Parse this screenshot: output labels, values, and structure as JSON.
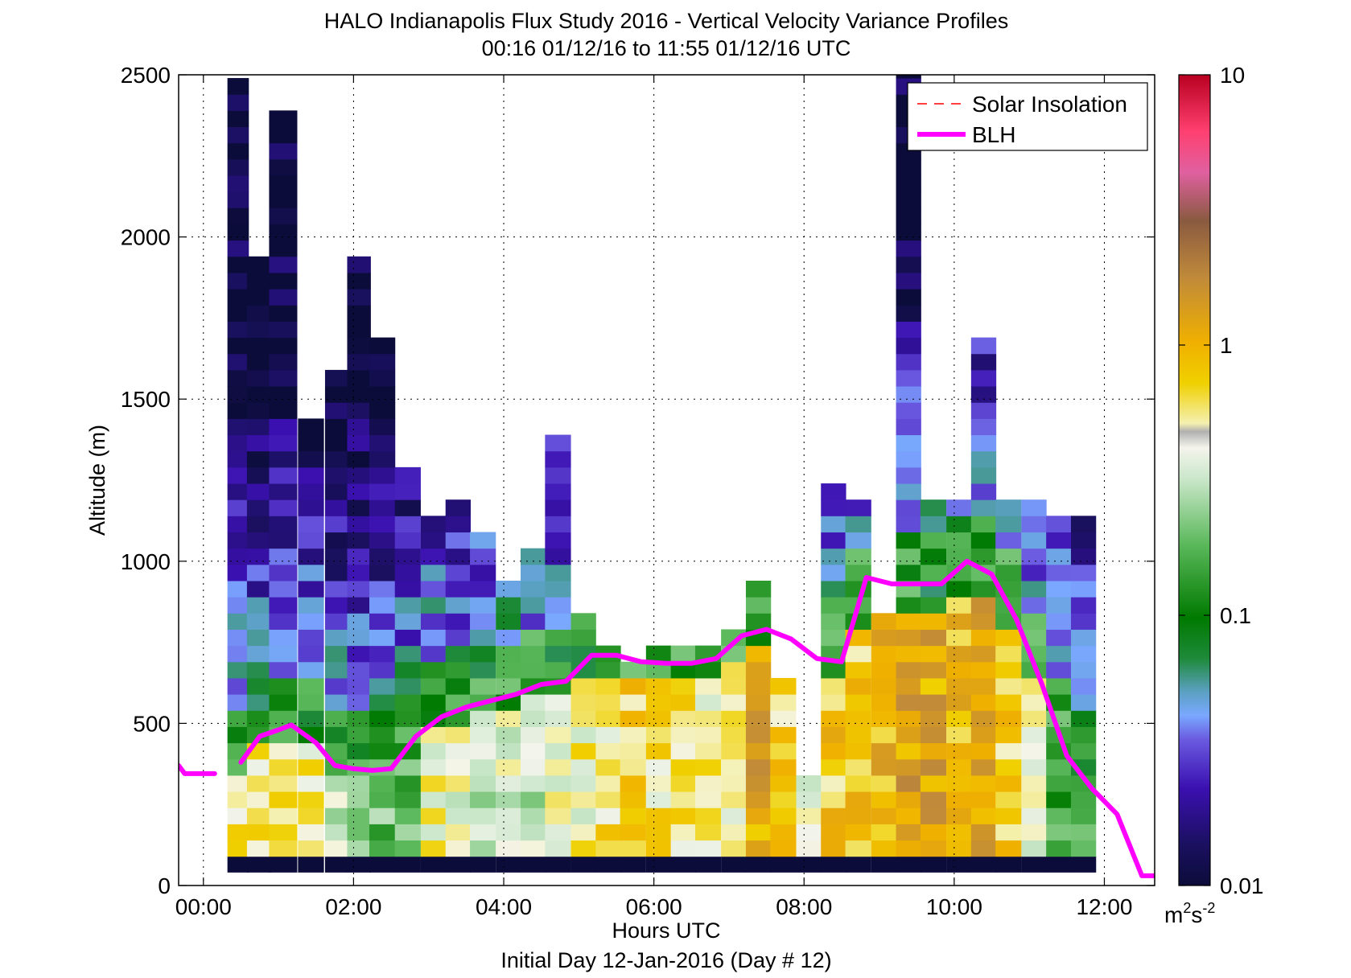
{
  "chart_data": {
    "type": "heatmap",
    "title": "HALO Indianapolis Flux Study 2016 - Vertical Velocity Variance Profiles",
    "subtitle": "00:16 01/12/16 to 11:55 01/12/16  UTC",
    "xlabel": "Hours UTC",
    "xlabel2": "Initial Day 12-Jan-2016 (Day # 12)",
    "ylabel": "Altitude (m)",
    "xlim": [
      -0.33,
      12.67
    ],
    "ylim": [
      0,
      2500
    ],
    "x_ticks": [
      0,
      2,
      4,
      6,
      8,
      10,
      12
    ],
    "x_tick_labels": [
      "00:00",
      "02:00",
      "04:00",
      "06:00",
      "08:00",
      "10:00",
      "12:00"
    ],
    "y_ticks": [
      0,
      500,
      1000,
      1500,
      2000,
      2500
    ],
    "y_tick_labels": [
      "0",
      "500",
      "1000",
      "1500",
      "2000",
      "2500"
    ],
    "grid": true,
    "grid_style": "dotted",
    "legend_position": "top-right",
    "colorbar": {
      "scale": "log",
      "range": [
        0.01,
        10
      ],
      "ticks": [
        0.01,
        0.1,
        1,
        10
      ],
      "tick_labels": [
        "0.01",
        "0.1",
        "1",
        "10"
      ],
      "units_label": "m",
      "units_sup1": "2",
      "units_mid": "s",
      "units_sup2": "-2"
    },
    "variance_field": {
      "units": "m^2 s^-2",
      "profile_hours": [
        0.46,
        0.74,
        1.06,
        1.43,
        1.77,
        2.07,
        2.38,
        2.72,
        3.06,
        3.39,
        3.72,
        4.06,
        4.39,
        4.72,
        5.06,
        5.39,
        5.72,
        6.06,
        6.39,
        6.72,
        7.06,
        7.39,
        7.72,
        8.06,
        8.39,
        8.72,
        9.06,
        9.39,
        9.72,
        10.06,
        10.39,
        10.72,
        11.06,
        11.39,
        11.72
      ],
      "profile_top_m": [
        2450,
        1920,
        2390,
        1430,
        1580,
        1920,
        1680,
        1290,
        1140,
        1190,
        1090,
        910,
        1000,
        1380,
        810,
        720,
        690,
        700,
        730,
        710,
        790,
        910,
        620,
        340,
        1240,
        1150,
        810,
        2500,
        1150,
        1150,
        1680,
        1190,
        1150,
        1100,
        1100
      ],
      "bin_height_m": 50,
      "approx_bl_variance": [
        0.6,
        0.6,
        0.6,
        0.5,
        0.3,
        0.3,
        0.2,
        0.2,
        0.5,
        0.4,
        0.3,
        0.4,
        0.3,
        0.4,
        0.5,
        0.6,
        0.7,
        0.6,
        0.6,
        0.5,
        0.5,
        1.2,
        0.7,
        0.5,
        0.8,
        0.8,
        1.0,
        1.3,
        1.2,
        0.9,
        1.1,
        0.7,
        0.4,
        0.15,
        0.15
      ]
    },
    "series": [
      {
        "name": "Solar Insolation",
        "color": "#ff0000",
        "style": "dashed",
        "x": [],
        "y": []
      },
      {
        "name": "BLH",
        "color": "#ff00ff",
        "style": "solid",
        "x": [
          -0.33,
          -0.25,
          0,
          0.15,
          0.5,
          0.75,
          1.0,
          1.17,
          1.5,
          1.75,
          2.0,
          2.25,
          2.5,
          2.83,
          3.17,
          3.5,
          3.83,
          4.17,
          4.5,
          4.83,
          5.17,
          5.5,
          5.83,
          6.17,
          6.5,
          6.83,
          7.17,
          7.5,
          7.83,
          8.17,
          8.5,
          8.83,
          9.17,
          9.5,
          9.83,
          10.17,
          10.5,
          10.83,
          11.17,
          11.5,
          11.83,
          12.17,
          12.5,
          12.67
        ],
        "y": [
          370,
          345,
          345,
          345,
          380,
          460,
          480,
          495,
          440,
          370,
          360,
          355,
          360,
          460,
          520,
          550,
          570,
          590,
          620,
          630,
          710,
          710,
          690,
          685,
          685,
          700,
          770,
          790,
          760,
          700,
          690,
          950,
          930,
          930,
          930,
          1000,
          960,
          820,
          620,
          400,
          300,
          220,
          30,
          30
        ],
        "gaps_after_index": [
          3
        ]
      }
    ],
    "colors": {
      "blh": "#ff00ff",
      "solar": "#ff0000",
      "no_data": "#ffffff",
      "low": "#0c0c3a",
      "high": "#c8102e"
    }
  }
}
